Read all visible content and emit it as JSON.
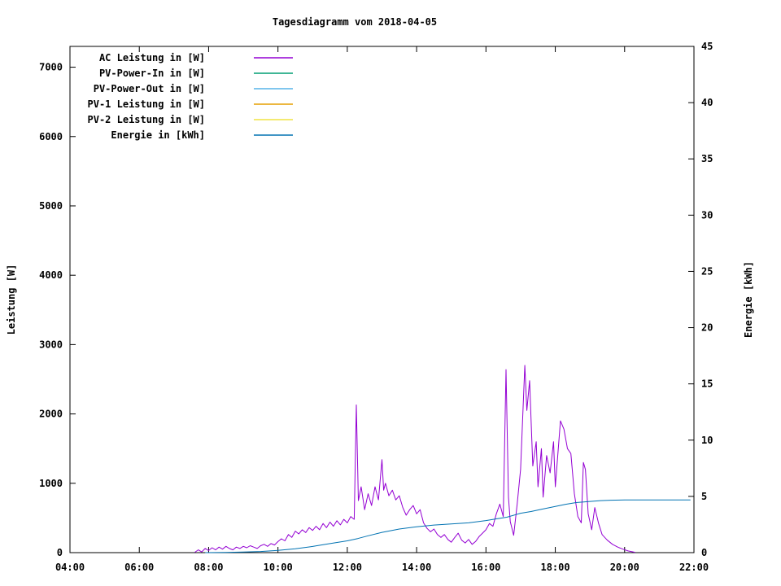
{
  "title": "Tagesdiagramm vom 2018-04-05",
  "chart_data": {
    "type": "line",
    "title": "Tagesdiagramm vom 2018-04-05",
    "grid": false,
    "legend_position": "top-left-inside",
    "x_axis": {
      "label": "",
      "start_hour": 4,
      "end_hour": 22,
      "tick_hours": [
        4,
        6,
        8,
        10,
        12,
        14,
        16,
        18,
        20,
        22
      ],
      "tick_labels": [
        "04:00",
        "06:00",
        "08:00",
        "10:00",
        "12:00",
        "14:00",
        "16:00",
        "18:00",
        "20:00",
        "22:00"
      ]
    },
    "y_left": {
      "label": "Leistung [W]",
      "min": 0,
      "max": 7300,
      "ticks": [
        0,
        1000,
        2000,
        3000,
        4000,
        5000,
        6000,
        7000
      ]
    },
    "y_right": {
      "label": "Energie [kWh]",
      "min": 0,
      "max": 45,
      "ticks": [
        0,
        5,
        10,
        15,
        20,
        25,
        30,
        35,
        40,
        45
      ]
    },
    "series": [
      {
        "name": "AC Leistung in [W]",
        "color": "#9400d3",
        "axis": "left",
        "points": [
          [
            7.6,
            5
          ],
          [
            7.7,
            40
          ],
          [
            7.8,
            10
          ],
          [
            7.9,
            60
          ],
          [
            8.0,
            30
          ],
          [
            8.1,
            70
          ],
          [
            8.2,
            40
          ],
          [
            8.3,
            80
          ],
          [
            8.4,
            50
          ],
          [
            8.5,
            90
          ],
          [
            8.6,
            60
          ],
          [
            8.7,
            40
          ],
          [
            8.8,
            80
          ],
          [
            8.9,
            60
          ],
          [
            9.0,
            90
          ],
          [
            9.1,
            70
          ],
          [
            9.2,
            100
          ],
          [
            9.3,
            80
          ],
          [
            9.4,
            60
          ],
          [
            9.5,
            100
          ],
          [
            9.6,
            120
          ],
          [
            9.7,
            90
          ],
          [
            9.8,
            130
          ],
          [
            9.9,
            110
          ],
          [
            10.0,
            160
          ],
          [
            10.1,
            200
          ],
          [
            10.2,
            170
          ],
          [
            10.3,
            260
          ],
          [
            10.4,
            220
          ],
          [
            10.5,
            310
          ],
          [
            10.6,
            270
          ],
          [
            10.7,
            330
          ],
          [
            10.8,
            290
          ],
          [
            10.9,
            360
          ],
          [
            11.0,
            320
          ],
          [
            11.1,
            380
          ],
          [
            11.2,
            330
          ],
          [
            11.3,
            420
          ],
          [
            11.4,
            360
          ],
          [
            11.5,
            440
          ],
          [
            11.6,
            380
          ],
          [
            11.7,
            460
          ],
          [
            11.8,
            400
          ],
          [
            11.9,
            480
          ],
          [
            12.0,
            430
          ],
          [
            12.1,
            520
          ],
          [
            12.2,
            480
          ],
          [
            12.26,
            2130
          ],
          [
            12.32,
            750
          ],
          [
            12.4,
            950
          ],
          [
            12.5,
            620
          ],
          [
            12.6,
            850
          ],
          [
            12.7,
            680
          ],
          [
            12.8,
            950
          ],
          [
            12.9,
            760
          ],
          [
            13.0,
            1340
          ],
          [
            13.05,
            900
          ],
          [
            13.1,
            1000
          ],
          [
            13.2,
            820
          ],
          [
            13.3,
            900
          ],
          [
            13.4,
            760
          ],
          [
            13.5,
            820
          ],
          [
            13.6,
            650
          ],
          [
            13.7,
            540
          ],
          [
            13.8,
            620
          ],
          [
            13.9,
            680
          ],
          [
            14.0,
            560
          ],
          [
            14.1,
            620
          ],
          [
            14.2,
            430
          ],
          [
            14.3,
            350
          ],
          [
            14.4,
            300
          ],
          [
            14.5,
            340
          ],
          [
            14.6,
            260
          ],
          [
            14.7,
            220
          ],
          [
            14.8,
            260
          ],
          [
            14.9,
            190
          ],
          [
            15.0,
            150
          ],
          [
            15.1,
            220
          ],
          [
            15.2,
            280
          ],
          [
            15.3,
            180
          ],
          [
            15.4,
            140
          ],
          [
            15.5,
            190
          ],
          [
            15.6,
            120
          ],
          [
            15.7,
            160
          ],
          [
            15.8,
            230
          ],
          [
            15.9,
            280
          ],
          [
            16.0,
            330
          ],
          [
            16.1,
            420
          ],
          [
            16.2,
            380
          ],
          [
            16.3,
            560
          ],
          [
            16.4,
            700
          ],
          [
            16.5,
            520
          ],
          [
            16.58,
            2640
          ],
          [
            16.65,
            800
          ],
          [
            16.7,
            450
          ],
          [
            16.8,
            250
          ],
          [
            16.9,
            700
          ],
          [
            17.0,
            1200
          ],
          [
            17.12,
            2700
          ],
          [
            17.18,
            2050
          ],
          [
            17.26,
            2480
          ],
          [
            17.35,
            1250
          ],
          [
            17.45,
            1600
          ],
          [
            17.5,
            950
          ],
          [
            17.6,
            1500
          ],
          [
            17.65,
            800
          ],
          [
            17.75,
            1400
          ],
          [
            17.85,
            1150
          ],
          [
            17.95,
            1600
          ],
          [
            18.0,
            950
          ],
          [
            18.15,
            1900
          ],
          [
            18.25,
            1780
          ],
          [
            18.35,
            1500
          ],
          [
            18.45,
            1430
          ],
          [
            18.55,
            850
          ],
          [
            18.65,
            520
          ],
          [
            18.75,
            430
          ],
          [
            18.81,
            1300
          ],
          [
            18.87,
            1200
          ],
          [
            18.95,
            560
          ],
          [
            19.05,
            330
          ],
          [
            19.14,
            650
          ],
          [
            19.25,
            420
          ],
          [
            19.35,
            260
          ],
          [
            19.5,
            180
          ],
          [
            19.65,
            120
          ],
          [
            19.8,
            80
          ],
          [
            19.95,
            50
          ],
          [
            20.1,
            25
          ],
          [
            20.3,
            5
          ]
        ]
      },
      {
        "name": "PV-Power-In in [W]",
        "color": "#009e73",
        "axis": "left",
        "points": []
      },
      {
        "name": "PV-Power-Out in [W]",
        "color": "#56b4e9",
        "axis": "left",
        "points": []
      },
      {
        "name": "PV-1 Leistung in [W]",
        "color": "#e69f00",
        "axis": "left",
        "points": []
      },
      {
        "name": "PV-2 Leistung in [W]",
        "color": "#f0e442",
        "axis": "left",
        "points": []
      },
      {
        "name": "Energie in [kWh]",
        "color": "#0072b2",
        "axis": "right",
        "points": [
          [
            7.9,
            0
          ],
          [
            8.5,
            0.02
          ],
          [
            9.0,
            0.05
          ],
          [
            9.5,
            0.1
          ],
          [
            10.0,
            0.2
          ],
          [
            10.5,
            0.35
          ],
          [
            11.0,
            0.55
          ],
          [
            11.5,
            0.8
          ],
          [
            12.0,
            1.05
          ],
          [
            12.3,
            1.25
          ],
          [
            12.6,
            1.5
          ],
          [
            13.0,
            1.8
          ],
          [
            13.5,
            2.1
          ],
          [
            14.0,
            2.3
          ],
          [
            14.5,
            2.45
          ],
          [
            15.0,
            2.55
          ],
          [
            15.5,
            2.65
          ],
          [
            16.0,
            2.85
          ],
          [
            16.3,
            3.0
          ],
          [
            16.6,
            3.15
          ],
          [
            17.0,
            3.5
          ],
          [
            17.3,
            3.65
          ],
          [
            17.6,
            3.85
          ],
          [
            18.0,
            4.1
          ],
          [
            18.3,
            4.3
          ],
          [
            18.6,
            4.45
          ],
          [
            19.0,
            4.55
          ],
          [
            19.3,
            4.62
          ],
          [
            19.6,
            4.66
          ],
          [
            20.0,
            4.68
          ],
          [
            21.0,
            4.68
          ],
          [
            21.9,
            4.68
          ]
        ]
      }
    ]
  }
}
